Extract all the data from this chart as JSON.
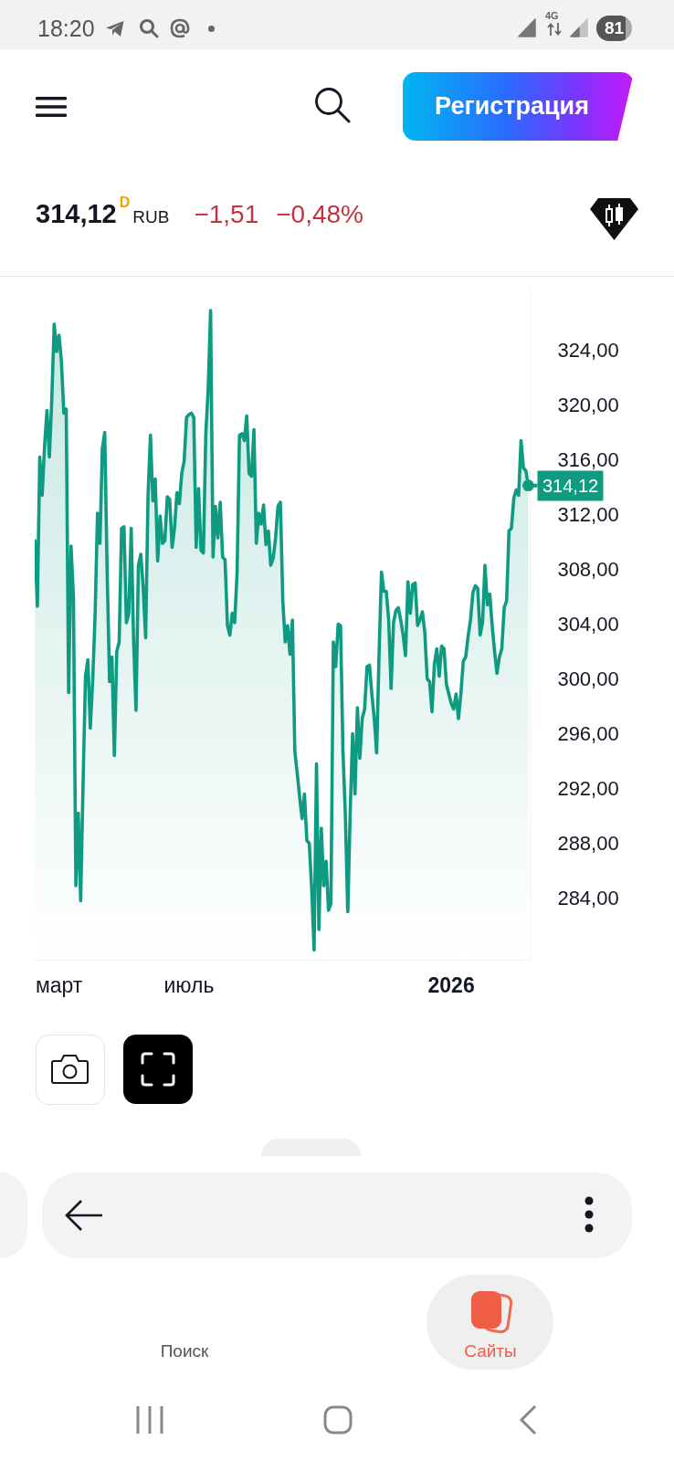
{
  "chart_data": {
    "type": "area",
    "color": "#0e9b81",
    "categories": [
      null,
      null,
      null,
      null,
      null,
      null,
      null,
      null,
      null,
      null,
      "март",
      null,
      null,
      null,
      null,
      null,
      null,
      null,
      null,
      null,
      null,
      null,
      null,
      null,
      null,
      null,
      null,
      null,
      null,
      null,
      null,
      null,
      null,
      null,
      null,
      null,
      null,
      null,
      null,
      null,
      null,
      null,
      null,
      null,
      null,
      null,
      null,
      null,
      null,
      null,
      null,
      null,
      null,
      null,
      null,
      null,
      null,
      null,
      null,
      null,
      null,
      null,
      null,
      null,
      "июль",
      null,
      null,
      null,
      null,
      null,
      null,
      null,
      null,
      null,
      null,
      null,
      null,
      null,
      null,
      null,
      null,
      null,
      null,
      null,
      null,
      null,
      null,
      null,
      null,
      null,
      null,
      null,
      null,
      null,
      null,
      null,
      null,
      null,
      null,
      null,
      null,
      null,
      null,
      null,
      null,
      null,
      null,
      null,
      null,
      null,
      null,
      null,
      null,
      null,
      null,
      null,
      null,
      null,
      null,
      null,
      null,
      null,
      null,
      null,
      null,
      null,
      null,
      null,
      null,
      null,
      null,
      null,
      null,
      null,
      null,
      null,
      null,
      null,
      null,
      null,
      null,
      null,
      null,
      null,
      null,
      null,
      null,
      null,
      null,
      null,
      null,
      null,
      null,
      null,
      null,
      null,
      null,
      null,
      null,
      null,
      null,
      null,
      null,
      null,
      null,
      null,
      null,
      null,
      null,
      null,
      null,
      null,
      null,
      "2026",
      null,
      null,
      null,
      null,
      null,
      null,
      null,
      null,
      null,
      null,
      null,
      null,
      null,
      null,
      null,
      null,
      null,
      null,
      null,
      null,
      null,
      null,
      null,
      null,
      null,
      null,
      null,
      null,
      null,
      null,
      null,
      null
    ],
    "values": [
      310.1,
      305.3,
      316.2,
      313.4,
      317.0,
      319.6,
      316.2,
      320.4,
      325.9,
      323.9,
      325.1,
      323.2,
      319.4,
      319.7,
      299.0,
      309.7,
      306.0,
      284.9,
      290.2,
      283.8,
      292.4,
      300.2,
      301.4,
      296.4,
      299.9,
      304.7,
      312.1,
      309.9,
      316.8,
      318.0,
      307.9,
      299.8,
      301.6,
      294.4,
      302.0,
      302.7,
      311.0,
      311.1,
      304.1,
      304.8,
      311.0,
      302.8,
      297.7,
      308.3,
      309.1,
      306.6,
      303.0,
      313.4,
      317.8,
      313.0,
      314.6,
      308.6,
      311.9,
      309.9,
      310.1,
      313.3,
      313.1,
      309.6,
      311.0,
      313.6,
      312.8,
      315.0,
      315.9,
      319.1,
      319.3,
      319.4,
      319.1,
      309.6,
      313.9,
      309.4,
      309.2,
      317.9,
      321.2,
      326.9,
      308.9,
      312.6,
      310.3,
      312.9,
      308.9,
      308.7,
      303.9,
      303.2,
      304.8,
      304.1,
      307.8,
      317.8,
      317.9,
      317.4,
      319.2,
      315.0,
      314.8,
      318.2,
      309.9,
      312.1,
      311.3,
      312.7,
      309.8,
      310.8,
      308.3,
      308.8,
      310.3,
      312.6,
      312.9,
      305.7,
      302.7,
      303.9,
      301.8,
      304.3,
      294.7,
      293.1,
      291.4,
      289.8,
      291.6,
      288.2,
      288.0,
      284.7,
      280.2,
      293.8,
      281.7,
      289.1,
      284.9,
      286.7,
      283.1,
      283.6,
      302.7,
      300.9,
      304.0,
      303.9,
      294.7,
      290.0,
      283.0,
      290.2,
      296.0,
      291.6,
      297.9,
      294.2,
      297.1,
      297.8,
      300.9,
      301.0,
      298.9,
      297.1,
      294.6,
      301.8,
      307.8,
      306.4,
      306.4,
      304.3,
      299.3,
      304.1,
      305.0,
      305.2,
      304.3,
      303.2,
      301.7,
      307.1,
      304.8,
      306.9,
      307.0,
      303.9,
      304.3,
      304.9,
      303.4,
      300.0,
      299.8,
      297.6,
      301.1,
      302.2,
      300.2,
      302.4,
      302.2,
      299.6,
      298.9,
      298.2,
      297.8,
      298.9,
      297.1,
      298.9,
      301.3,
      301.6,
      303.1,
      304.3,
      306.3,
      306.8,
      306.6,
      303.2,
      304.1,
      308.3,
      305.4,
      306.2,
      303.9,
      302.0,
      300.4,
      301.6,
      302.2,
      305.2,
      305.7,
      310.8,
      311.0,
      313.2,
      313.8,
      313.4,
      317.4,
      315.4,
      315.2,
      314.12
    ],
    "ylim": [
      279.5,
      328.5
    ],
    "yticks": [
      {
        "value": 284,
        "label": "284,00"
      },
      {
        "value": 288,
        "label": "288,00"
      },
      {
        "value": 292,
        "label": "292,00"
      },
      {
        "value": 296,
        "label": "296,00"
      },
      {
        "value": 300,
        "label": "300,00"
      },
      {
        "value": 304,
        "label": "304,00"
      },
      {
        "value": 308,
        "label": "308,00"
      },
      {
        "value": 312,
        "label": "312,00"
      },
      {
        "value": 316,
        "label": "316,00"
      },
      {
        "value": 320,
        "label": "320,00"
      },
      {
        "value": 324,
        "label": "324,00"
      }
    ],
    "annotations": [
      "18:20",
      "4G",
      "81",
      "Регистрация",
      "314,12",
      "D",
      "RUB",
      "−1,51",
      "−0,48%",
      "Поиск",
      "Сайты",
      "314,12"
    ]
  }
}
